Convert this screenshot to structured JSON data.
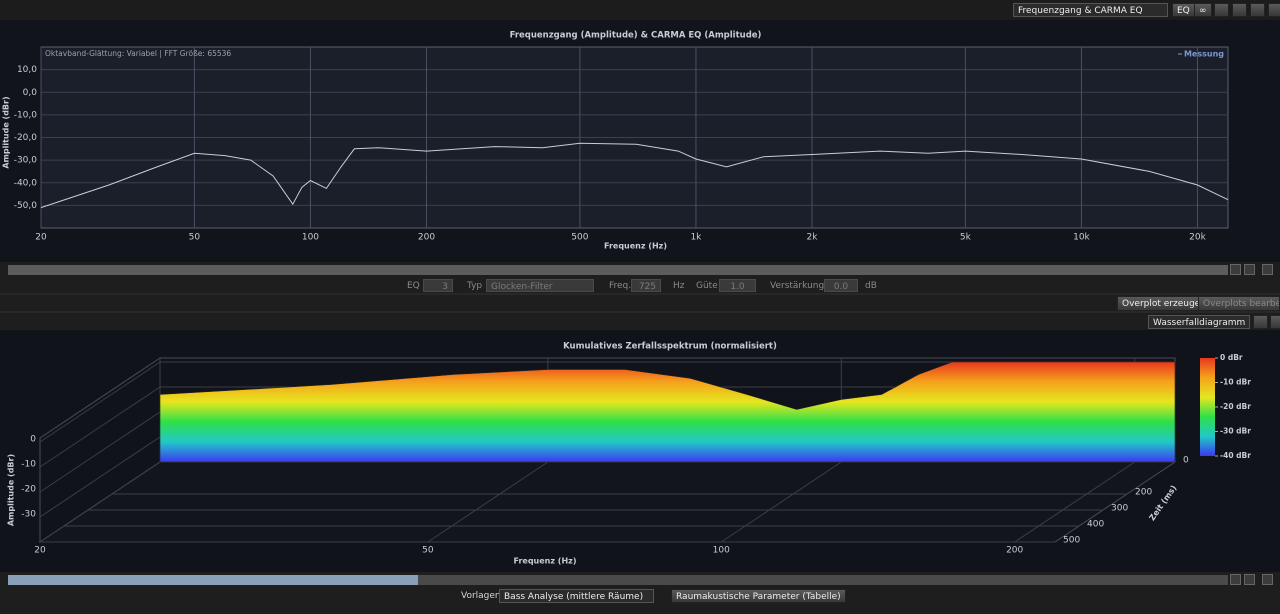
{
  "toolbar": {
    "view": "Frequenzgang & CARMA EQ",
    "eq_button": "EQ",
    "link_button": "∞"
  },
  "chart_data": [
    {
      "type": "line",
      "title": "Frequenzgang (Amplitude) & CARMA EQ (Amplitude)",
      "annotation": "Oktavband-Glättung: Variabel | FFT Größe: 65536",
      "xlabel": "Frequenz (Hz)",
      "ylabel": "Amplitude (dBr)",
      "x": [
        20,
        30,
        40,
        50,
        60,
        70,
        80,
        90,
        95,
        100,
        110,
        120,
        130,
        150,
        200,
        300,
        400,
        500,
        700,
        900,
        1000,
        1200,
        1500,
        2000,
        3000,
        4000,
        5000,
        7000,
        10000,
        15000,
        20000,
        24000
      ],
      "series": [
        {
          "name": "Messung",
          "color": "#c8cdd8",
          "values": [
            -51,
            -41,
            -33,
            -27,
            -28,
            -30,
            -37,
            -49.5,
            -42,
            -39,
            -42.5,
            -33,
            -25,
            -24.5,
            -26,
            -24,
            -24.5,
            -22.5,
            -23,
            -26,
            -29.5,
            -33,
            -28.5,
            -27.5,
            -26,
            -27,
            -26,
            -27.5,
            -29.5,
            -35,
            -41,
            -47.5
          ]
        }
      ],
      "xscale": "log",
      "xlim": [
        20,
        24000
      ],
      "ylim": [
        -60,
        20
      ],
      "xticks": [
        20,
        50,
        100,
        200,
        500,
        {
          "value": 1000,
          "label": "1k"
        },
        {
          "value": 2000,
          "label": "2k"
        },
        {
          "value": 5000,
          "label": "5k"
        },
        {
          "value": 10000,
          "label": "10k"
        },
        {
          "value": 20000,
          "label": "20k"
        }
      ],
      "yticks": [
        {
          "value": 10,
          "label": "10,0"
        },
        {
          "value": 0,
          "label": "0,0"
        },
        {
          "value": -10,
          "label": "-10,0"
        },
        {
          "value": -20,
          "label": "-20,0"
        },
        {
          "value": -30,
          "label": "-30,0"
        },
        {
          "value": -40,
          "label": "-40,0"
        },
        {
          "value": -50,
          "label": "-50,0"
        }
      ],
      "grid": true,
      "legend": "top-right"
    },
    {
      "type": "waterfall",
      "title": "Kumulatives Zerfallsspektrum (normalisiert)",
      "xlabel": "Frequenz (Hz)",
      "ylabel": "Amplitude (dBr)",
      "zlabel": "Zeit (ms)",
      "x": [
        20,
        30,
        40,
        50,
        60,
        70,
        80,
        90,
        100,
        110,
        120,
        130,
        150,
        200,
        220
      ],
      "values": [
        -13,
        -9,
        -5,
        -3,
        -3,
        -6.5,
        -13,
        -19,
        -15,
        -13,
        -5,
        0,
        0,
        0,
        0
      ],
      "xscale": "log",
      "xlim": [
        20,
        220
      ],
      "ylim": [
        -40,
        0
      ],
      "zlim": [
        0,
        500
      ],
      "xticks": [
        20,
        50,
        100,
        200
      ],
      "yticks": [
        0,
        -10,
        -20,
        -30
      ],
      "zticks": [
        0,
        200,
        300,
        400,
        500
      ],
      "colormap": [
        "#e8381e",
        "#f5a21c",
        "#e6e61e",
        "#2ee04a",
        "#22c8c8",
        "#3a3af0"
      ],
      "colorbar": {
        "lim": [
          -40,
          0
        ],
        "ticks": [
          {
            "value": 0,
            "label": "0 dBr"
          },
          {
            "value": -10,
            "label": "-10 dBr"
          },
          {
            "value": -20,
            "label": "-20 dBr"
          },
          {
            "value": -30,
            "label": "-30 dBr"
          },
          {
            "value": -40,
            "label": "-40 dBr"
          }
        ]
      }
    }
  ],
  "eq_bar": {
    "eq_label": "EQ",
    "eq_number": "3",
    "type_label": "Typ",
    "type": "Glocken-Filter",
    "freq_label": "Freq.",
    "freq": "725",
    "freq_unit": "Hz",
    "q_label": "Güte",
    "q": "1.0",
    "gain_label": "Verstärkung",
    "gain": "0.0",
    "gain_unit": "dB"
  },
  "overplot": {
    "create": "Overplot erzeugen",
    "edit": "Overplots bearbeiten"
  },
  "lower_toolbar": {
    "view": "Wasserfalldiagramm"
  },
  "footer": {
    "presets_label": "Vorlagen",
    "preset": "Bass Analyse (mittlere Räume)",
    "params_button": "Raumakustische Parameter (Tabelle)"
  }
}
